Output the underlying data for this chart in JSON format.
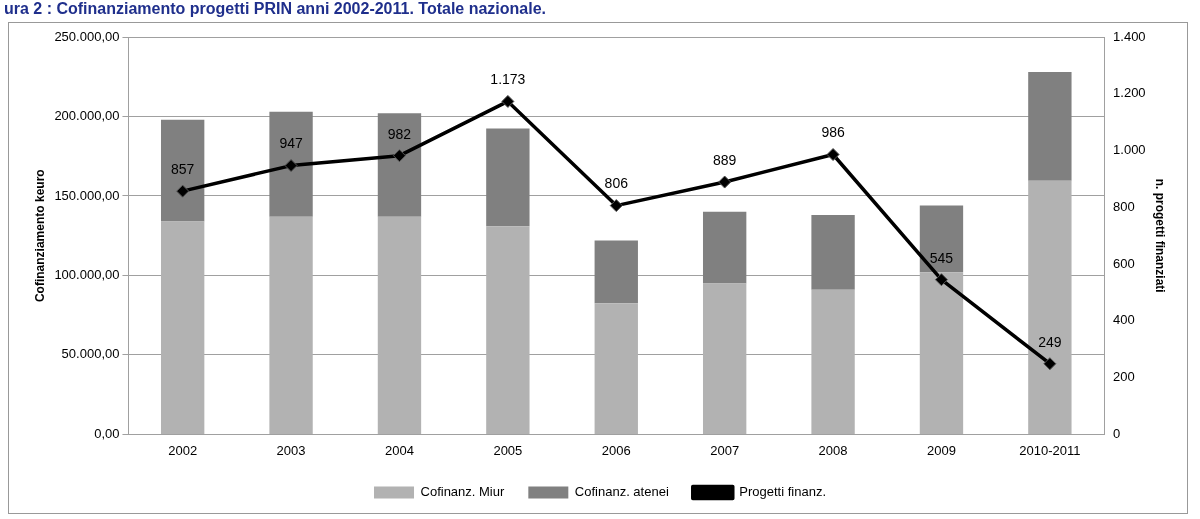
{
  "chart_data": {
    "type": "bar",
    "title": "ura 2 : Cofinanziamento progetti PRIN anni 2002-2011. Totale nazionale.",
    "ylabel": "Cofinanziamento keuro",
    "y2label": "n. progetti finanziati",
    "categories": [
      "2002",
      "2003",
      "2004",
      "2005",
      "2006",
      "2007",
      "2008",
      "2009",
      "2010-2011"
    ],
    "stacked": true,
    "series": [
      {
        "name": "Cofinanz. Miur",
        "color": "#b2b2b2",
        "values": [
          134000,
          137000,
          137000,
          131000,
          82500,
          95000,
          91000,
          102000,
          159500
        ]
      },
      {
        "name": "Cofinanz. atenei",
        "color": "#808080",
        "values": [
          64000,
          66000,
          65000,
          61500,
          39500,
          45000,
          47000,
          42000,
          68500
        ]
      },
      {
        "name": "Progetti finanz.",
        "type": "line",
        "axis": "y2",
        "color": "#000000",
        "marker": "diamond",
        "values": [
          857,
          947,
          982,
          1173,
          806,
          889,
          986,
          545,
          249
        ],
        "value_labels": [
          "857",
          "947",
          "982",
          "1.173",
          "806",
          "889",
          "986",
          "545",
          "249"
        ]
      }
    ],
    "ylim": [
      0,
      250000
    ],
    "yticks": [
      {
        "value": 0,
        "label": "0,00"
      },
      {
        "value": 50000,
        "label": "50.000,00"
      },
      {
        "value": 100000,
        "label": "100.000,00"
      },
      {
        "value": 150000,
        "label": "150.000,00"
      },
      {
        "value": 200000,
        "label": "200.000,00"
      },
      {
        "value": 250000,
        "label": "250.000,00"
      }
    ],
    "y2lim": [
      0,
      1400
    ],
    "y2ticks": [
      0,
      200,
      400,
      600,
      800,
      {
        "value": 1000,
        "label": "1.000"
      },
      {
        "value": 1200,
        "label": "1.200"
      },
      {
        "value": 1400,
        "label": "1.400"
      }
    ],
    "grid": "y",
    "legend": "bottom"
  }
}
